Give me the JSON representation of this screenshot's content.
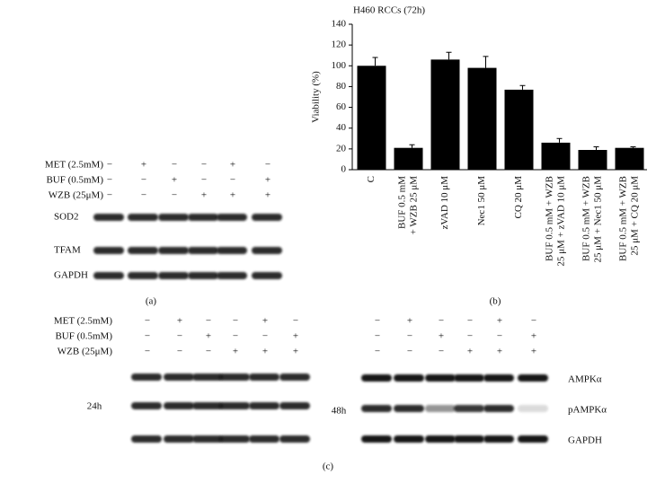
{
  "panel_a": {
    "treatments": [
      {
        "label": "MET (2.5mM)",
        "signs": [
          "−",
          "+",
          "−",
          "−",
          "+",
          "−"
        ]
      },
      {
        "label": "BUF (0.5mM)",
        "signs": [
          "−",
          "−",
          "+",
          "−",
          "−",
          "+"
        ]
      },
      {
        "label": "WZB (25μM)",
        "signs": [
          "−",
          "−",
          "−",
          "+",
          "+",
          "+"
        ]
      }
    ],
    "blots": [
      "SOD2",
      "TFAM",
      "GAPDH"
    ],
    "caption": "(a)"
  },
  "chart_data": {
    "type": "bar",
    "title": "H460 RCCs (72h)",
    "y_label": "Viability (%)",
    "categories": [
      [
        "C"
      ],
      [
        "BUF 0.5 mM",
        "+ WZB 25 μM"
      ],
      [
        "zVAD 10 μM"
      ],
      [
        "Nec1 50 μM"
      ],
      [
        "CQ 20 μM"
      ],
      [
        "BUF 0.5 mM + WZB",
        "25 μM + zVAD 10 μM"
      ],
      [
        "BUF 0.5 mM + WZB",
        "25 μM + Nec1 50 μM"
      ],
      [
        "BUF 0.5 mM + WZB",
        "25 μM + CQ 20 μM"
      ]
    ],
    "values": [
      100,
      21,
      106,
      98,
      77,
      26,
      19,
      21
    ],
    "errors": [
      8,
      3,
      7,
      11,
      4,
      4,
      3,
      1
    ],
    "color": "#000000",
    "ylim": [
      0,
      140
    ],
    "yticks": [
      0,
      20,
      40,
      60,
      80,
      100,
      120,
      140
    ],
    "caption": "(b)"
  },
  "panel_c": {
    "treatments": [
      {
        "label": "MET (2.5mM)",
        "signs": [
          "−",
          "+",
          "−",
          "−",
          "+",
          "−"
        ]
      },
      {
        "label": "BUF (0.5mM)",
        "signs": [
          "−",
          "−",
          "+",
          "−",
          "−",
          "+"
        ]
      },
      {
        "label": "WZB (25μM)",
        "signs": [
          "−",
          "−",
          "−",
          "+",
          "+",
          "+"
        ]
      }
    ],
    "right_signs": [
      [
        "−",
        "+",
        "−",
        "−",
        "+",
        "−"
      ],
      [
        "−",
        "−",
        "+",
        "−",
        "−",
        "+"
      ],
      [
        "−",
        "−",
        "−",
        "+",
        "+",
        "+"
      ]
    ],
    "left_time": "24h",
    "right_time": "48h",
    "blots": [
      "AMPKα",
      "pAMPKα",
      "GAPDH"
    ],
    "caption": "(c)"
  }
}
